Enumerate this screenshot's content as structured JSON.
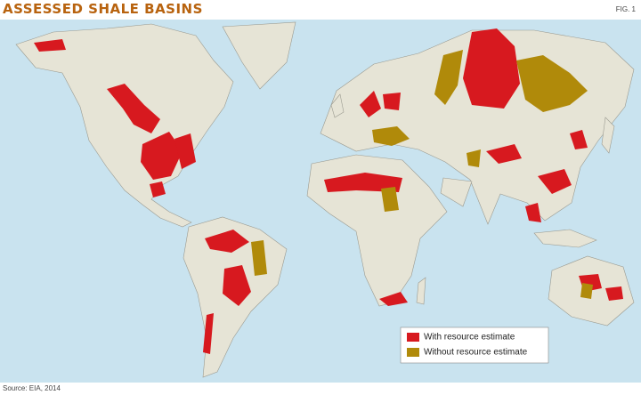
{
  "header": {
    "title": "ASSESSED SHALE BASINS",
    "figure": "FIG. 1"
  },
  "legend": [
    {
      "label": "With resource estimate",
      "color": "#d7191f"
    },
    {
      "label": "Without resource estimate",
      "color": "#b08a0a"
    }
  ],
  "source": "Source: EIA, 2014"
}
